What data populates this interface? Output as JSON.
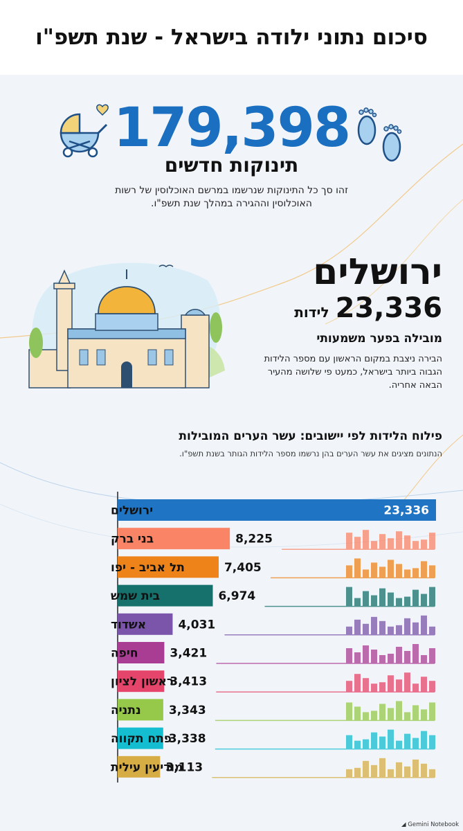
{
  "header": {
    "title": "סיכום נתוני ילודה בישראל - שנת תשפ\"ו"
  },
  "hero": {
    "total": "179,398",
    "label": "תינוקות חדשים",
    "description": "זהו סך כל התינוקות שנרשמו במרשם האוכלוסין של רשות האוכלוסין וההגירה במהלך שנת תשפ\"ו."
  },
  "leader": {
    "city": "ירושלים",
    "births": "23,336",
    "births_unit": "לידות",
    "tagline": "מובילה בפער משמעותי",
    "description": "הבירה ניצבת במקום הראשון עם מספר הלידות הגבוה ביותר בישראל, כמעט פי שלושה מהעיר הבאה אחריה."
  },
  "section": {
    "title": "פילוח הלידות לפי יישובים: עשר הערים המובילות",
    "subtitle": "הנתונים מציגים את עשר הערים בהן נרשמו מספר הלידות הגותר בשנת תשפ\"ו."
  },
  "chart_data": {
    "type": "bar",
    "orientation": "horizontal",
    "title": "פילוח הלידות לפי יישובים: עשר הערים המובילות",
    "categories": [
      "ירושלים",
      "בני ברק",
      "תל אביב - יפו",
      "בית שמש",
      "אשדוד",
      "חיפה",
      "ראשון לציון",
      "נתניה",
      "פתח תקווה",
      "מודיעין עילית"
    ],
    "values": [
      23336,
      8225,
      7405,
      6974,
      4031,
      3421,
      3413,
      3343,
      3338,
      3113
    ],
    "value_labels": [
      "23,336",
      "8,225",
      "7,405",
      "6,974",
      "4,031",
      "3,421",
      "3,413",
      "3,343",
      "3,338",
      "3,113"
    ],
    "colors": [
      "#1f74c4",
      "#f98466",
      "#ee8319",
      "#16706b",
      "#7b55a9",
      "#a93c93",
      "#e5456a",
      "#96c84a",
      "#14bed0",
      "#d6ad45"
    ],
    "xlim": [
      0,
      23336
    ],
    "grid": false,
    "legend": "none"
  },
  "brand": {
    "label": "Gemini Notebook"
  }
}
